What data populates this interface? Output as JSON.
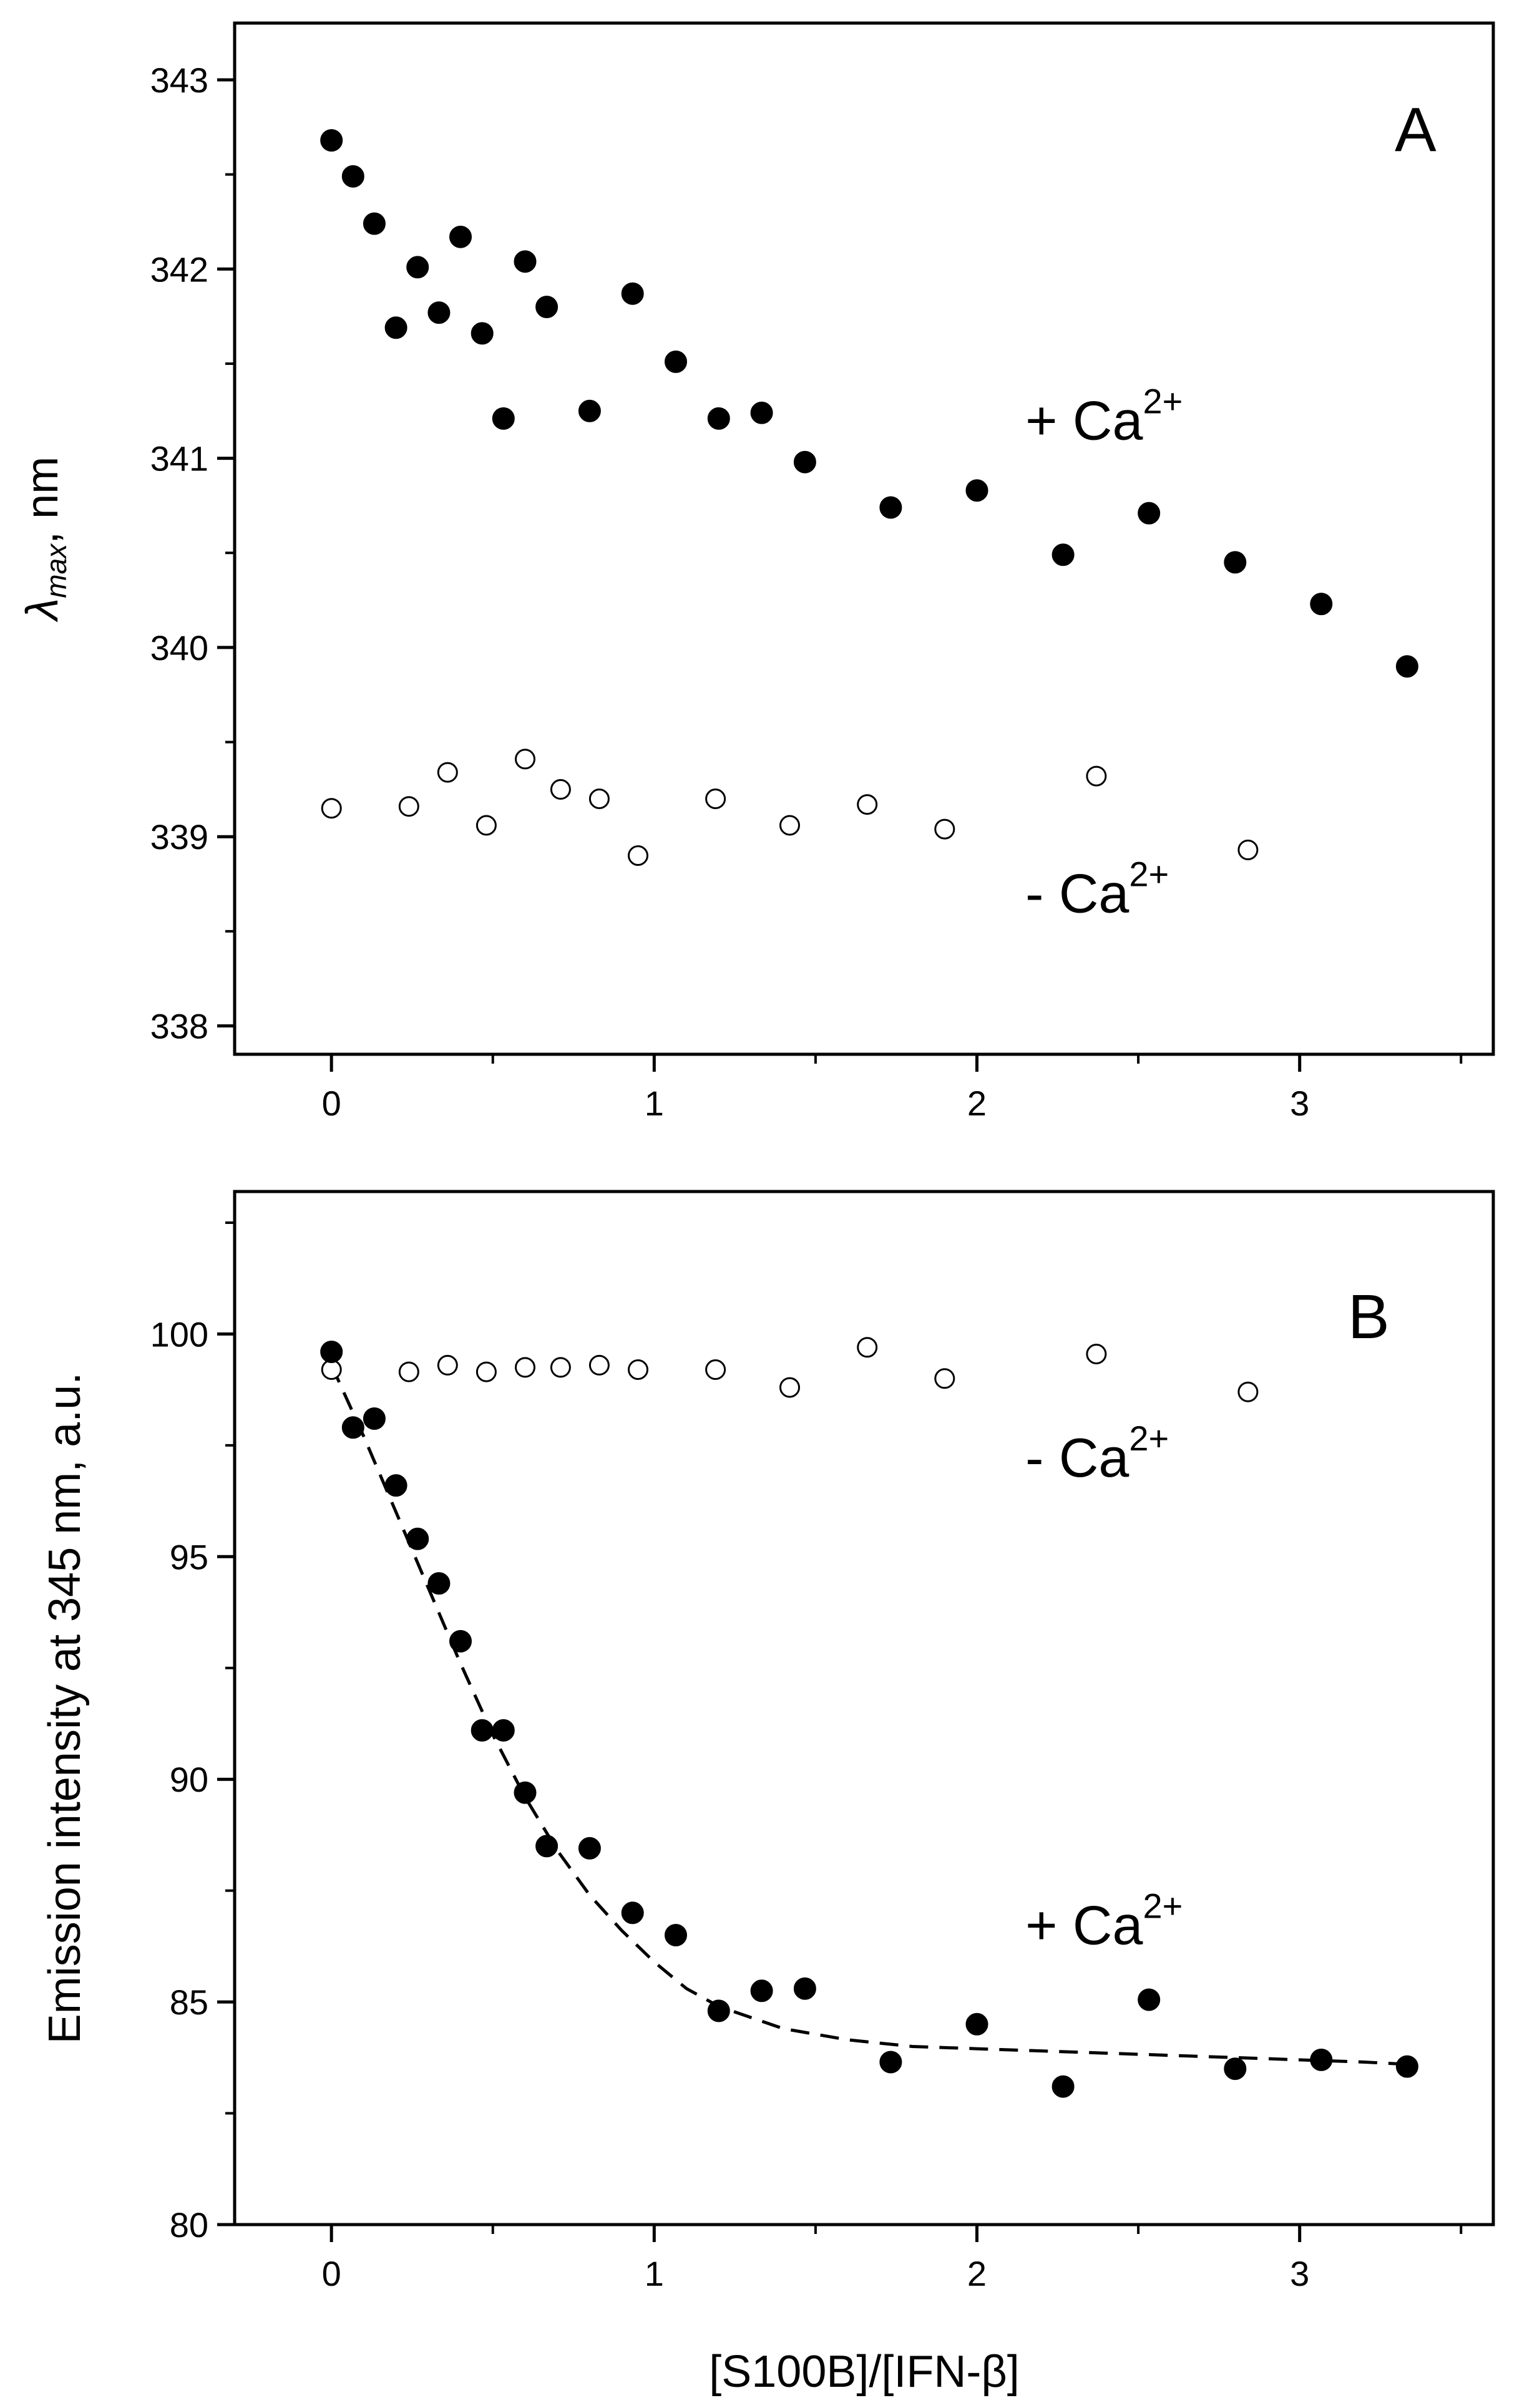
{
  "chart_data": [
    {
      "panel": "A",
      "type": "scatter",
      "panel_label": "A",
      "ylabel_symbol": "λ",
      "ylabel_sub": "max",
      "ylabel_rest": ", nm",
      "xlabel": "",
      "xlim": [
        -0.3,
        3.6
      ],
      "ylim": [
        337.85,
        343.3
      ],
      "xticks": [
        0,
        1,
        2,
        3
      ],
      "xtick_labels": [
        "0",
        "1",
        "2",
        "3"
      ],
      "yticks": [
        338,
        339,
        340,
        341,
        342,
        343
      ],
      "ytick_labels": [
        "338",
        "339",
        "340",
        "341",
        "342",
        "343"
      ],
      "series": [
        {
          "name": "+ Ca2+",
          "label_main": "+ Ca",
          "label_sup": "2+",
          "marker": "filled-circle",
          "label_at": [
            2.15,
            341.1
          ],
          "x": [
            0.0,
            0.067,
            0.133,
            0.2,
            0.267,
            0.333,
            0.4,
            0.467,
            0.533,
            0.6,
            0.667,
            0.8,
            0.933,
            1.067,
            1.2,
            1.333,
            1.467,
            1.733,
            2.0,
            2.267,
            2.533,
            2.8,
            3.067,
            3.333
          ],
          "y": [
            342.68,
            342.49,
            342.24,
            341.69,
            342.01,
            341.77,
            342.17,
            341.66,
            341.21,
            342.04,
            341.8,
            341.25,
            341.87,
            341.51,
            341.21,
            341.24,
            340.98,
            340.74,
            340.83,
            340.49,
            340.71,
            340.45,
            340.23,
            339.9
          ]
        },
        {
          "name": "- Ca2+",
          "label_main": "- Ca",
          "label_sup": "2+",
          "marker": "open-circle",
          "label_at": [
            2.15,
            338.6
          ],
          "x": [
            0.0,
            0.24,
            0.36,
            0.48,
            0.6,
            0.71,
            0.83,
            0.95,
            1.19,
            1.42,
            1.66,
            1.9,
            2.37,
            2.84
          ],
          "y": [
            339.15,
            339.16,
            339.34,
            339.06,
            339.41,
            339.25,
            339.2,
            338.9,
            339.2,
            339.06,
            339.17,
            339.04,
            339.32,
            338.93
          ]
        }
      ]
    },
    {
      "panel": "B",
      "type": "scatter",
      "panel_label": "B",
      "ylabel": "Emission intensity at 345 nm, a.u.",
      "xlabel": "[S100B]/[IFN-β]",
      "xlim": [
        -0.3,
        3.6
      ],
      "ylim": [
        80,
        103.2
      ],
      "xticks": [
        0,
        1,
        2,
        3
      ],
      "xtick_labels": [
        "0",
        "1",
        "2",
        "3"
      ],
      "yticks": [
        80,
        85,
        90,
        95,
        100
      ],
      "ytick_labels": [
        "80",
        "85",
        "90",
        "95",
        "100"
      ],
      "series": [
        {
          "name": "- Ca2+",
          "label_main": "- Ca",
          "label_sup": "2+",
          "marker": "open-circle",
          "label_at": [
            2.15,
            96.8
          ],
          "x": [
            0.0,
            0.24,
            0.36,
            0.48,
            0.6,
            0.71,
            0.83,
            0.95,
            1.19,
            1.42,
            1.66,
            1.9,
            2.37,
            2.84
          ],
          "y": [
            99.2,
            99.15,
            99.3,
            99.15,
            99.25,
            99.25,
            99.3,
            99.2,
            99.2,
            98.8,
            99.7,
            99.0,
            99.55,
            98.7
          ]
        },
        {
          "name": "+ Ca2+",
          "label_main": "+ Ca",
          "label_sup": "2+",
          "marker": "filled-circle",
          "label_at": [
            2.15,
            86.3
          ],
          "x": [
            0.0,
            0.067,
            0.133,
            0.2,
            0.267,
            0.333,
            0.4,
            0.467,
            0.533,
            0.6,
            0.667,
            0.8,
            0.933,
            1.067,
            1.2,
            1.333,
            1.467,
            1.733,
            2.0,
            2.267,
            2.533,
            2.8,
            3.067,
            3.333
          ],
          "y": [
            99.6,
            97.9,
            98.1,
            96.6,
            95.4,
            94.4,
            93.1,
            91.1,
            91.1,
            89.7,
            88.5,
            88.45,
            87.0,
            86.5,
            84.8,
            85.25,
            85.3,
            83.65,
            84.5,
            83.1,
            85.05,
            83.5,
            83.7,
            83.55
          ]
        },
        {
          "name": "fit",
          "marker": "dashed-line",
          "x": [
            0.0,
            0.1,
            0.2,
            0.3,
            0.4,
            0.5,
            0.6,
            0.7,
            0.8,
            0.9,
            1.0,
            1.1,
            1.2,
            1.4,
            1.6,
            1.8,
            2.0,
            2.4,
            2.8,
            3.2,
            3.333
          ],
          "y": [
            99.3,
            97.7,
            96.0,
            94.3,
            92.6,
            91.0,
            89.6,
            88.4,
            87.4,
            86.6,
            85.9,
            85.3,
            84.9,
            84.4,
            84.15,
            84.0,
            83.95,
            83.85,
            83.75,
            83.65,
            83.6
          ]
        }
      ]
    }
  ]
}
